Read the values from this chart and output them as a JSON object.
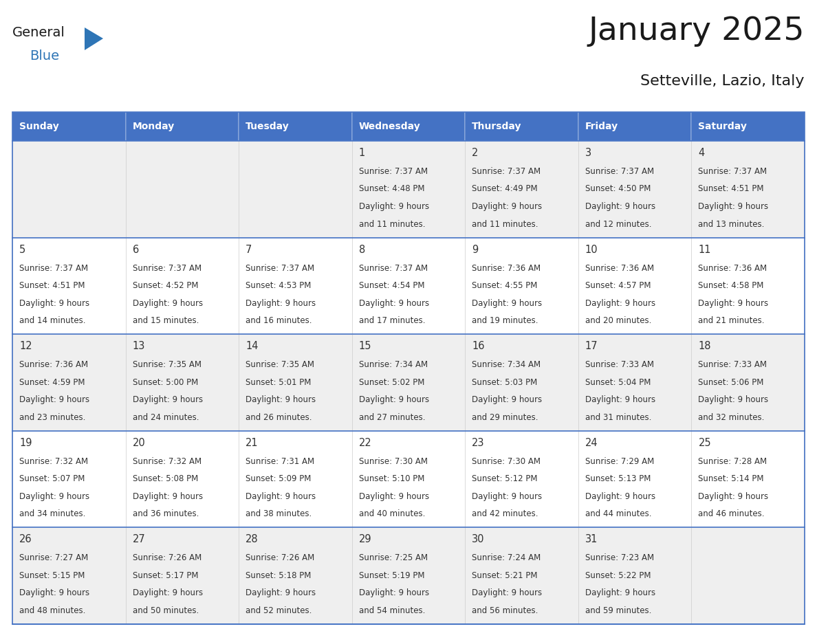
{
  "title": "January 2025",
  "subtitle": "Setteville, Lazio, Italy",
  "header_bg_color": "#4472C4",
  "header_text_color": "#FFFFFF",
  "cell_bg_even": "#EFEFEF",
  "cell_bg_odd": "#FFFFFF",
  "grid_line_color": "#4472C4",
  "text_color": "#333333",
  "logo_general_color": "#1A1A1A",
  "logo_blue_color": "#2E75B6",
  "logo_triangle_color": "#2E75B6",
  "days_of_week": [
    "Sunday",
    "Monday",
    "Tuesday",
    "Wednesday",
    "Thursday",
    "Friday",
    "Saturday"
  ],
  "calendar_data": [
    [
      {
        "day": null,
        "sunrise": null,
        "sunset": null,
        "daylight_line1": null,
        "daylight_line2": null
      },
      {
        "day": null,
        "sunrise": null,
        "sunset": null,
        "daylight_line1": null,
        "daylight_line2": null
      },
      {
        "day": null,
        "sunrise": null,
        "sunset": null,
        "daylight_line1": null,
        "daylight_line2": null
      },
      {
        "day": "1",
        "sunrise": "Sunrise: 7:37 AM",
        "sunset": "Sunset: 4:48 PM",
        "daylight_line1": "Daylight: 9 hours",
        "daylight_line2": "and 11 minutes."
      },
      {
        "day": "2",
        "sunrise": "Sunrise: 7:37 AM",
        "sunset": "Sunset: 4:49 PM",
        "daylight_line1": "Daylight: 9 hours",
        "daylight_line2": "and 11 minutes."
      },
      {
        "day": "3",
        "sunrise": "Sunrise: 7:37 AM",
        "sunset": "Sunset: 4:50 PM",
        "daylight_line1": "Daylight: 9 hours",
        "daylight_line2": "and 12 minutes."
      },
      {
        "day": "4",
        "sunrise": "Sunrise: 7:37 AM",
        "sunset": "Sunset: 4:51 PM",
        "daylight_line1": "Daylight: 9 hours",
        "daylight_line2": "and 13 minutes."
      }
    ],
    [
      {
        "day": "5",
        "sunrise": "Sunrise: 7:37 AM",
        "sunset": "Sunset: 4:51 PM",
        "daylight_line1": "Daylight: 9 hours",
        "daylight_line2": "and 14 minutes."
      },
      {
        "day": "6",
        "sunrise": "Sunrise: 7:37 AM",
        "sunset": "Sunset: 4:52 PM",
        "daylight_line1": "Daylight: 9 hours",
        "daylight_line2": "and 15 minutes."
      },
      {
        "day": "7",
        "sunrise": "Sunrise: 7:37 AM",
        "sunset": "Sunset: 4:53 PM",
        "daylight_line1": "Daylight: 9 hours",
        "daylight_line2": "and 16 minutes."
      },
      {
        "day": "8",
        "sunrise": "Sunrise: 7:37 AM",
        "sunset": "Sunset: 4:54 PM",
        "daylight_line1": "Daylight: 9 hours",
        "daylight_line2": "and 17 minutes."
      },
      {
        "day": "9",
        "sunrise": "Sunrise: 7:36 AM",
        "sunset": "Sunset: 4:55 PM",
        "daylight_line1": "Daylight: 9 hours",
        "daylight_line2": "and 19 minutes."
      },
      {
        "day": "10",
        "sunrise": "Sunrise: 7:36 AM",
        "sunset": "Sunset: 4:57 PM",
        "daylight_line1": "Daylight: 9 hours",
        "daylight_line2": "and 20 minutes."
      },
      {
        "day": "11",
        "sunrise": "Sunrise: 7:36 AM",
        "sunset": "Sunset: 4:58 PM",
        "daylight_line1": "Daylight: 9 hours",
        "daylight_line2": "and 21 minutes."
      }
    ],
    [
      {
        "day": "12",
        "sunrise": "Sunrise: 7:36 AM",
        "sunset": "Sunset: 4:59 PM",
        "daylight_line1": "Daylight: 9 hours",
        "daylight_line2": "and 23 minutes."
      },
      {
        "day": "13",
        "sunrise": "Sunrise: 7:35 AM",
        "sunset": "Sunset: 5:00 PM",
        "daylight_line1": "Daylight: 9 hours",
        "daylight_line2": "and 24 minutes."
      },
      {
        "day": "14",
        "sunrise": "Sunrise: 7:35 AM",
        "sunset": "Sunset: 5:01 PM",
        "daylight_line1": "Daylight: 9 hours",
        "daylight_line2": "and 26 minutes."
      },
      {
        "day": "15",
        "sunrise": "Sunrise: 7:34 AM",
        "sunset": "Sunset: 5:02 PM",
        "daylight_line1": "Daylight: 9 hours",
        "daylight_line2": "and 27 minutes."
      },
      {
        "day": "16",
        "sunrise": "Sunrise: 7:34 AM",
        "sunset": "Sunset: 5:03 PM",
        "daylight_line1": "Daylight: 9 hours",
        "daylight_line2": "and 29 minutes."
      },
      {
        "day": "17",
        "sunrise": "Sunrise: 7:33 AM",
        "sunset": "Sunset: 5:04 PM",
        "daylight_line1": "Daylight: 9 hours",
        "daylight_line2": "and 31 minutes."
      },
      {
        "day": "18",
        "sunrise": "Sunrise: 7:33 AM",
        "sunset": "Sunset: 5:06 PM",
        "daylight_line1": "Daylight: 9 hours",
        "daylight_line2": "and 32 minutes."
      }
    ],
    [
      {
        "day": "19",
        "sunrise": "Sunrise: 7:32 AM",
        "sunset": "Sunset: 5:07 PM",
        "daylight_line1": "Daylight: 9 hours",
        "daylight_line2": "and 34 minutes."
      },
      {
        "day": "20",
        "sunrise": "Sunrise: 7:32 AM",
        "sunset": "Sunset: 5:08 PM",
        "daylight_line1": "Daylight: 9 hours",
        "daylight_line2": "and 36 minutes."
      },
      {
        "day": "21",
        "sunrise": "Sunrise: 7:31 AM",
        "sunset": "Sunset: 5:09 PM",
        "daylight_line1": "Daylight: 9 hours",
        "daylight_line2": "and 38 minutes."
      },
      {
        "day": "22",
        "sunrise": "Sunrise: 7:30 AM",
        "sunset": "Sunset: 5:10 PM",
        "daylight_line1": "Daylight: 9 hours",
        "daylight_line2": "and 40 minutes."
      },
      {
        "day": "23",
        "sunrise": "Sunrise: 7:30 AM",
        "sunset": "Sunset: 5:12 PM",
        "daylight_line1": "Daylight: 9 hours",
        "daylight_line2": "and 42 minutes."
      },
      {
        "day": "24",
        "sunrise": "Sunrise: 7:29 AM",
        "sunset": "Sunset: 5:13 PM",
        "daylight_line1": "Daylight: 9 hours",
        "daylight_line2": "and 44 minutes."
      },
      {
        "day": "25",
        "sunrise": "Sunrise: 7:28 AM",
        "sunset": "Sunset: 5:14 PM",
        "daylight_line1": "Daylight: 9 hours",
        "daylight_line2": "and 46 minutes."
      }
    ],
    [
      {
        "day": "26",
        "sunrise": "Sunrise: 7:27 AM",
        "sunset": "Sunset: 5:15 PM",
        "daylight_line1": "Daylight: 9 hours",
        "daylight_line2": "and 48 minutes."
      },
      {
        "day": "27",
        "sunrise": "Sunrise: 7:26 AM",
        "sunset": "Sunset: 5:17 PM",
        "daylight_line1": "Daylight: 9 hours",
        "daylight_line2": "and 50 minutes."
      },
      {
        "day": "28",
        "sunrise": "Sunrise: 7:26 AM",
        "sunset": "Sunset: 5:18 PM",
        "daylight_line1": "Daylight: 9 hours",
        "daylight_line2": "and 52 minutes."
      },
      {
        "day": "29",
        "sunrise": "Sunrise: 7:25 AM",
        "sunset": "Sunset: 5:19 PM",
        "daylight_line1": "Daylight: 9 hours",
        "daylight_line2": "and 54 minutes."
      },
      {
        "day": "30",
        "sunrise": "Sunrise: 7:24 AM",
        "sunset": "Sunset: 5:21 PM",
        "daylight_line1": "Daylight: 9 hours",
        "daylight_line2": "and 56 minutes."
      },
      {
        "day": "31",
        "sunrise": "Sunrise: 7:23 AM",
        "sunset": "Sunset: 5:22 PM",
        "daylight_line1": "Daylight: 9 hours",
        "daylight_line2": "and 59 minutes."
      },
      {
        "day": null,
        "sunrise": null,
        "sunset": null,
        "daylight_line1": null,
        "daylight_line2": null
      }
    ]
  ]
}
